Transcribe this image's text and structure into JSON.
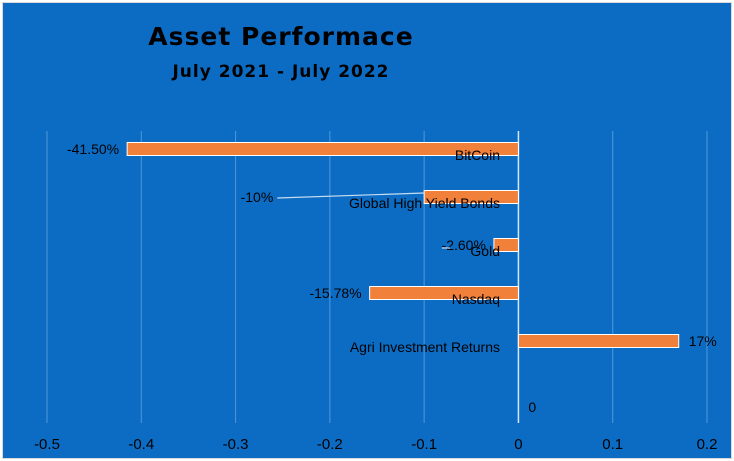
{
  "chart_data": {
    "type": "bar",
    "orientation": "horizontal",
    "title": "Asset Performace",
    "subtitle": "July 2021 - July 2022",
    "categories": [
      "BitCoin",
      "Global High Yield Bonds",
      "Gold",
      "Nasdaq",
      "Agri Investment Returns",
      ""
    ],
    "values": [
      -0.415,
      -0.1,
      -0.026,
      -0.1578,
      0.17,
      0
    ],
    "data_labels": [
      "-41.50%",
      "-10%",
      "-2.60%",
      "-15.78%",
      "17%",
      "0"
    ],
    "xlim": [
      -0.5,
      0.2
    ],
    "x_ticks": [
      -0.5,
      -0.4,
      -0.3,
      -0.2,
      -0.1,
      0,
      0.1,
      0.2
    ],
    "x_tick_labels": [
      "-0.5",
      "-0.4",
      "-0.3",
      "-0.2",
      "-0.1",
      "0",
      "0.1",
      "0.2"
    ],
    "grid": true,
    "legend": "none",
    "colors": {
      "background": "#0c6cc4",
      "bar": "#f0803a",
      "bar_edge": "#ffffff",
      "gridline": "#4f98d8",
      "zero_line": "#d6e8f7",
      "leader_line": "#c8dcef",
      "text": "#000000"
    }
  }
}
